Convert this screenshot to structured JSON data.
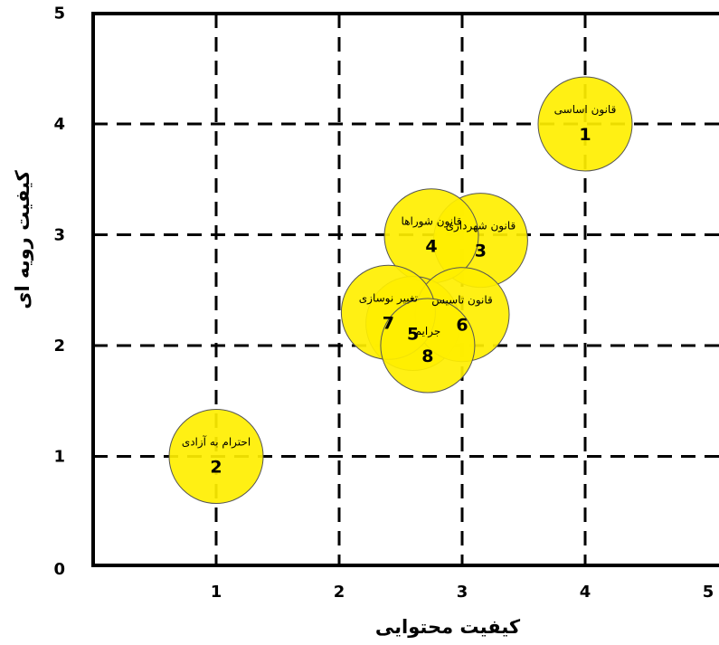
{
  "chart_data": {
    "type": "scatter",
    "xlabel": "کیفیت محتوایی",
    "ylabel": "کیفیت رویه ای",
    "xlim": [
      0,
      5
    ],
    "ylim": [
      0,
      5
    ],
    "x_ticks": [
      "1",
      "2",
      "3",
      "4",
      "5"
    ],
    "y_ticks": [
      "0",
      "1",
      "2",
      "3",
      "4",
      "5"
    ],
    "grid": true,
    "grid_style": "dashed",
    "bubble_color": "#FFEF00",
    "points": [
      {
        "id": "1",
        "label": "قانون اساسی",
        "x": 4.0,
        "y": 4.0
      },
      {
        "id": "2",
        "label": "احترام به آزادی",
        "x": 1.0,
        "y": 1.0
      },
      {
        "id": "3",
        "label": "قانون شهرداری",
        "x": 3.15,
        "y": 2.95
      },
      {
        "id": "4",
        "label": "قانون شوراها",
        "x": 2.75,
        "y": 2.99
      },
      {
        "id": "5",
        "label": "",
        "x": 2.6,
        "y": 2.2
      },
      {
        "id": "6",
        "label": "قانون تاسیس",
        "x": 3.0,
        "y": 2.28
      },
      {
        "id": "7",
        "label": "تغییر نوسازی",
        "x": 2.4,
        "y": 2.3
      },
      {
        "id": "8",
        "label": "جرایم",
        "x": 2.72,
        "y": 2.0
      }
    ]
  }
}
